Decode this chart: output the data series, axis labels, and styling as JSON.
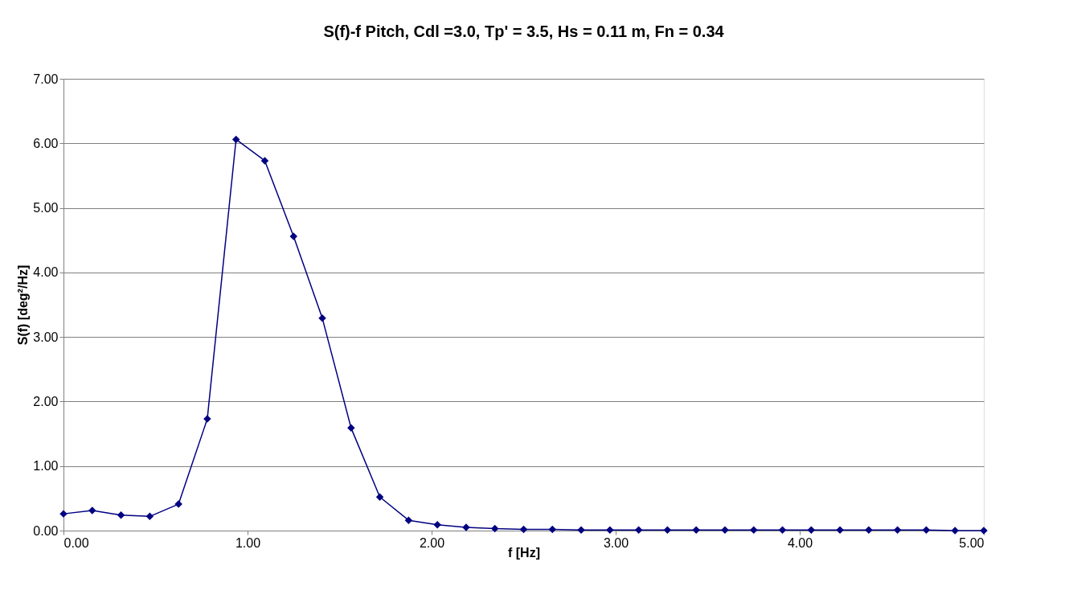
{
  "chart_data": {
    "type": "line",
    "title": "S(f)-f Pitch, Cdl =3.0, Tp' = 3.5, Hs = 0.11 m, Fn = 0.34",
    "xlabel": "f [Hz]",
    "ylabel": "S(f) [deg²/Hz]",
    "x": [
      0,
      0.15625,
      0.3125,
      0.46875,
      0.625,
      0.78125,
      0.9375,
      1.09375,
      1.25,
      1.40625,
      1.5625,
      1.71875,
      1.875,
      2.03125,
      2.1875,
      2.34375,
      2.5,
      2.65625,
      2.8125,
      2.96875,
      3.125,
      3.28125,
      3.4375,
      3.59375,
      3.75,
      3.90625,
      4.0625,
      4.21875,
      4.375,
      4.53125,
      4.6875,
      4.84375,
      5.0
    ],
    "series": [
      {
        "color": "#000080",
        "values": [
          0.26,
          0.31,
          0.24,
          0.22,
          0.41,
          1.73,
          6.06,
          5.73,
          4.56,
          3.29,
          1.59,
          0.52,
          0.16,
          0.09,
          0.05,
          0.03,
          0.02,
          0.02,
          0.01,
          0.01,
          0.01,
          0.01,
          0.01,
          0.01,
          0.01,
          0.01,
          0.01,
          0.01,
          0.01,
          0.01,
          0.01,
          0.0,
          0.0
        ]
      }
    ],
    "xlim": [
      0,
      5
    ],
    "ylim": [
      0,
      7
    ],
    "xticks": [
      {
        "value": 0,
        "label": "0.00"
      },
      {
        "value": 1,
        "label": "1.00"
      },
      {
        "value": 2,
        "label": "2.00"
      },
      {
        "value": 3,
        "label": "3.00"
      },
      {
        "value": 4,
        "label": "4.00"
      },
      {
        "value": 5,
        "label": "5.00"
      }
    ],
    "yticks": [
      {
        "value": 0,
        "label": "0.00"
      },
      {
        "value": 1,
        "label": "1.00"
      },
      {
        "value": 2,
        "label": "2.00"
      },
      {
        "value": 3,
        "label": "3.00"
      },
      {
        "value": 4,
        "label": "4.00"
      },
      {
        "value": 5,
        "label": "5.00"
      },
      {
        "value": 6,
        "label": "6.00"
      },
      {
        "value": 7,
        "label": "7.00"
      }
    ],
    "grid": "y",
    "marker": "diamond",
    "line_style": "solid",
    "legend": false
  }
}
